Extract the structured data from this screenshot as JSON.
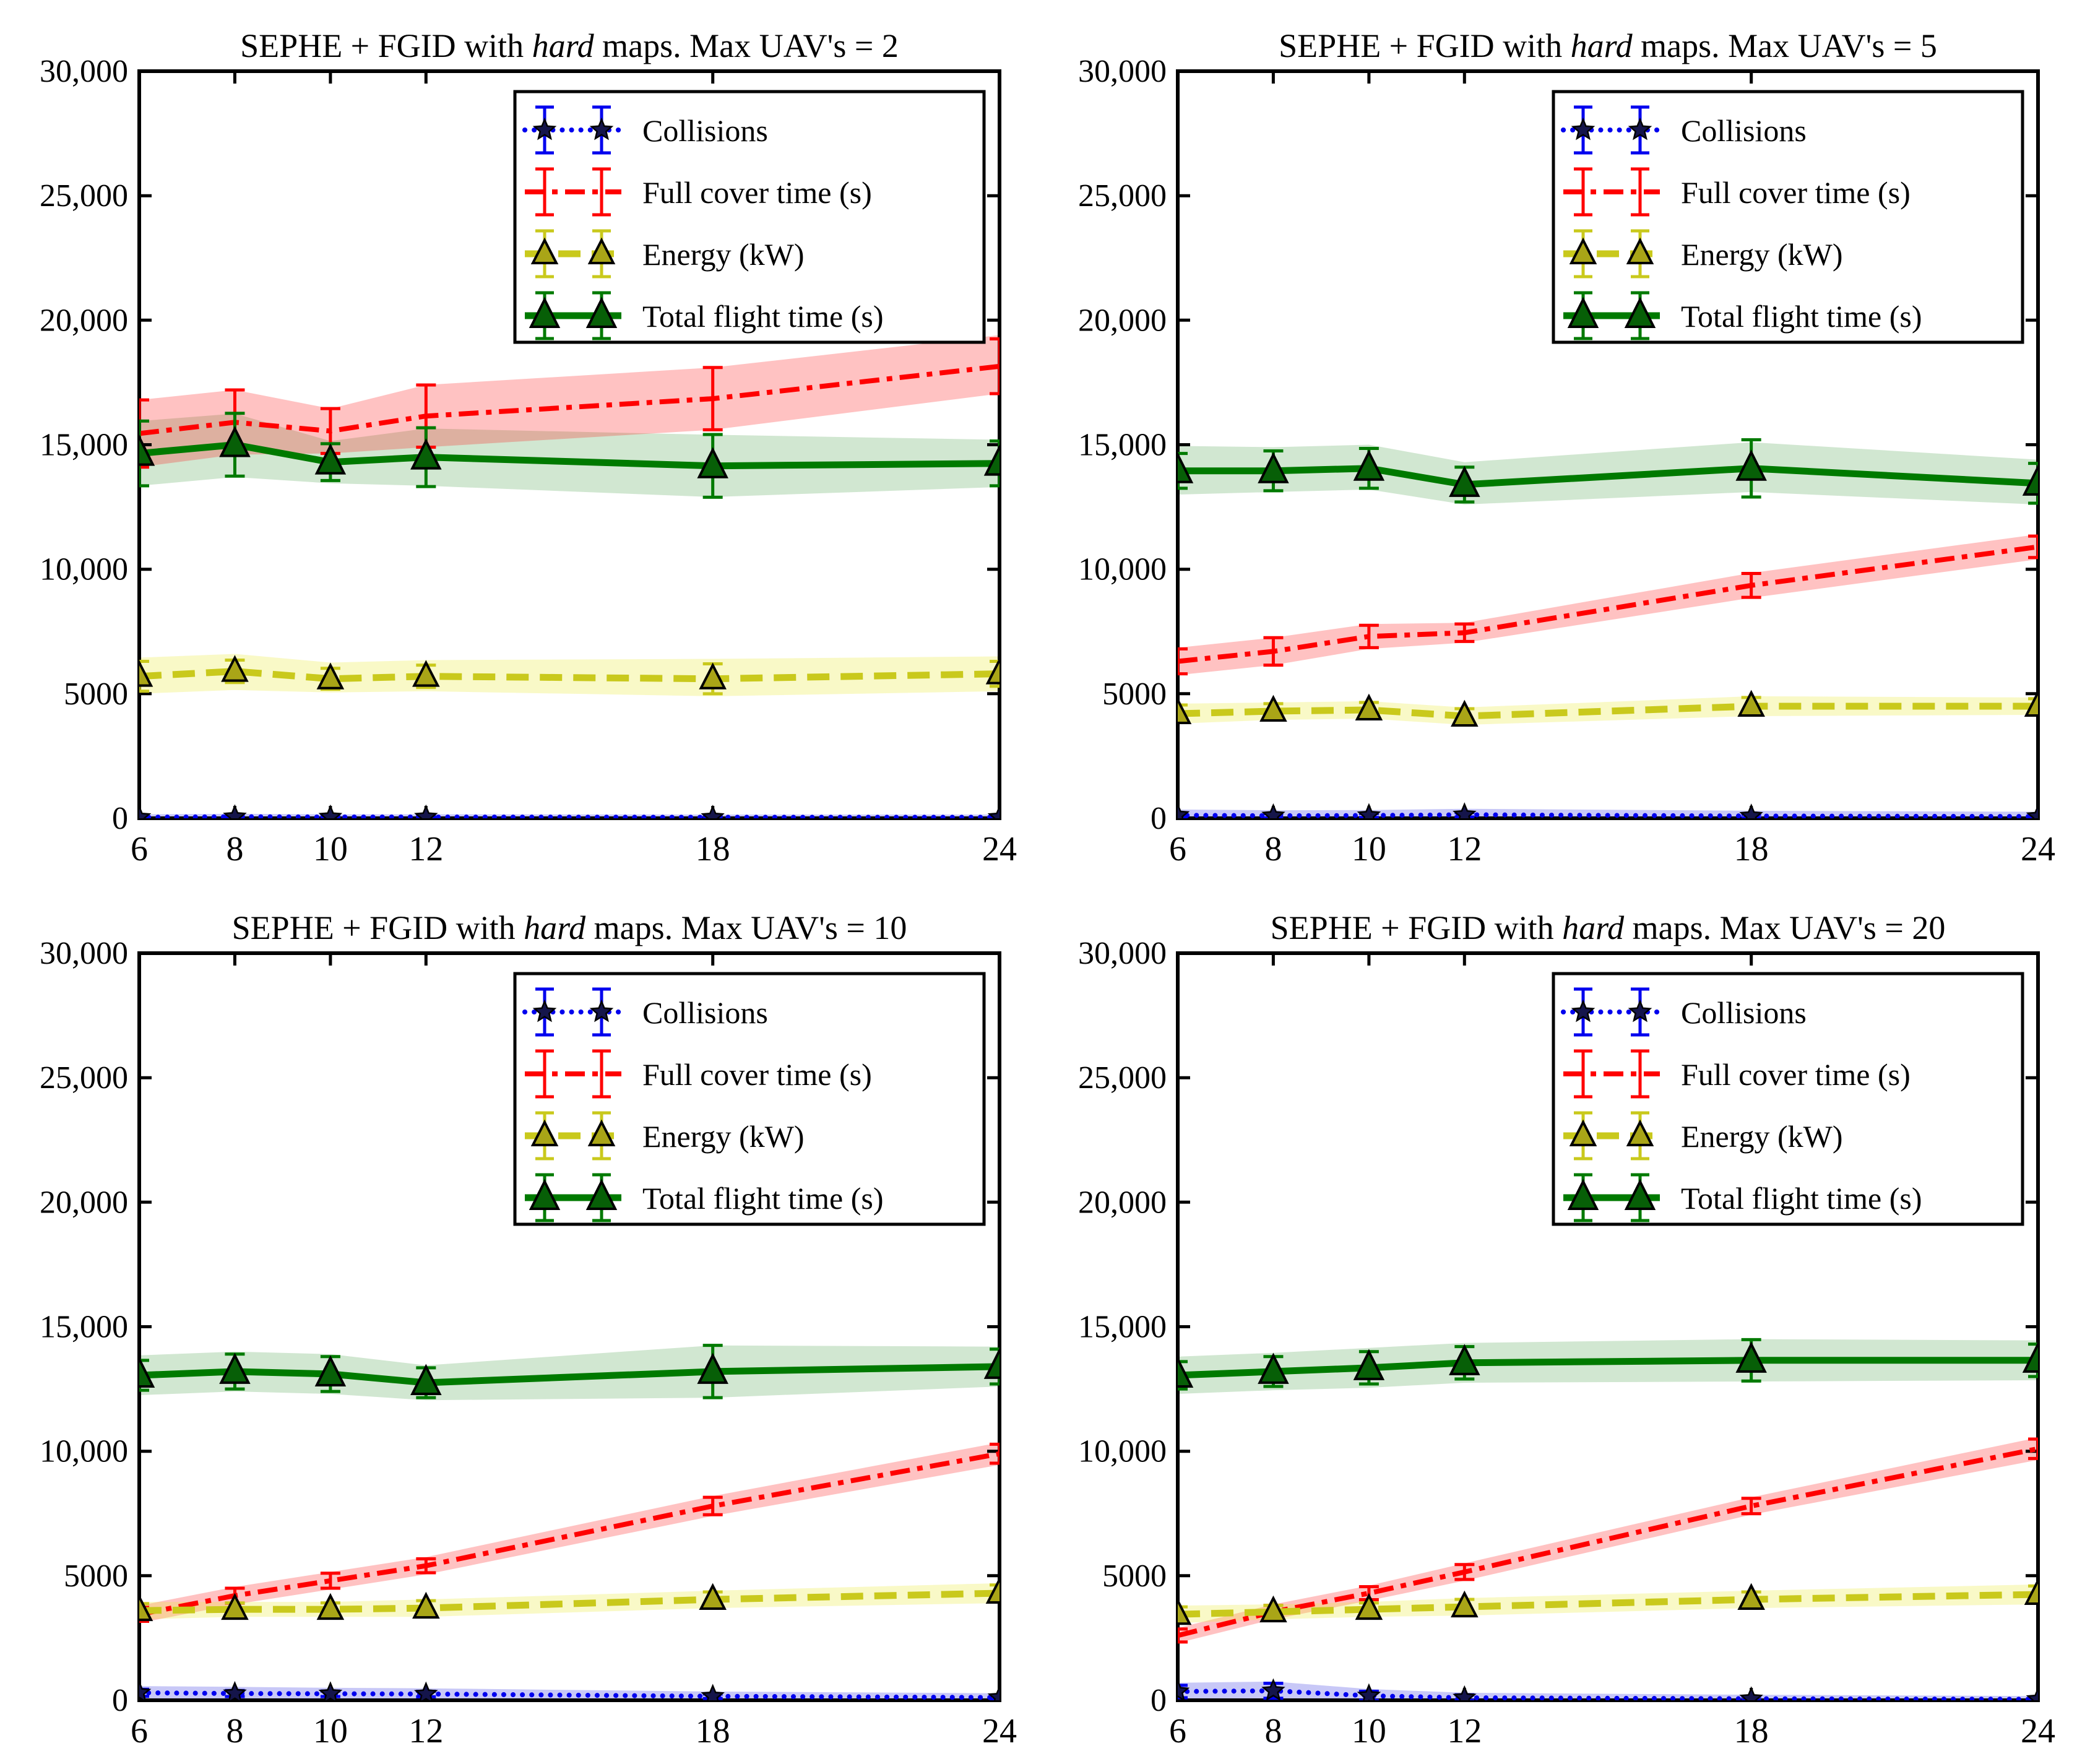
{
  "figure": {
    "background": "#ffffff"
  },
  "axes": {
    "x_range": [
      6,
      24
    ],
    "y_range": [
      0,
      30000
    ],
    "x_ticks": [
      "6",
      "8",
      "10",
      "12",
      "18",
      "24"
    ],
    "x_tick_values": [
      6,
      8,
      10,
      12,
      18,
      24
    ],
    "y_tick_values": [
      0,
      5000,
      10000,
      15000,
      20000,
      25000,
      30000
    ],
    "y_tick_labels": [
      "0",
      "5000",
      "10,000",
      "15,000",
      "20,000",
      "25,000",
      "30,000"
    ]
  },
  "legend": {
    "items": [
      {
        "key": "collisions",
        "label": "Collisions"
      },
      {
        "key": "full_cover",
        "label": "Full cover time (s)"
      },
      {
        "key": "energy",
        "label": "Energy (kW)"
      },
      {
        "key": "total_flight",
        "label": "Total flight time (s)"
      }
    ]
  },
  "styles": {
    "collisions": {
      "color": "#0000ee",
      "band": "rgba(85,85,230,0.32)",
      "line": "dotted",
      "marker": "star",
      "marker_fill": "#15154b"
    },
    "full_cover": {
      "color": "#ff0000",
      "band": "rgba(255,30,30,0.27)",
      "line": "dashdot",
      "marker": "none",
      "marker_fill": "#ff0000"
    },
    "energy": {
      "color": "#c9c91c",
      "band": "rgba(236,236,70,0.30)",
      "line": "dashed",
      "marker": "triangle",
      "marker_fill": "#a9a517"
    },
    "total_flight": {
      "color": "#007a00",
      "band": "rgba(10,128,10,0.19)",
      "line": "solid",
      "marker": "triangle",
      "marker_fill": "#075f07"
    }
  },
  "chart_data": {
    "type": "line",
    "x": [
      6,
      8,
      10,
      12,
      18,
      24
    ],
    "xlabel": "",
    "ylabel": "",
    "ylim": [
      0,
      30000
    ],
    "grid": false,
    "legend_position": "upper right",
    "charts": [
      {
        "name": "max-uavs-2",
        "title": [
          {
            "t": "SEPHE + FGID with ",
            "italic": false
          },
          {
            "t": "hard",
            "italic": true
          },
          {
            "t": " maps. Max UAV's = 2",
            "italic": false
          }
        ],
        "series": {
          "collisions": {
            "values": [
              40,
              60,
              50,
              50,
              40,
              40
            ],
            "err": [
              50,
              60,
              50,
              50,
              40,
              40
            ],
            "band_lo": [
              0,
              0,
              0,
              0,
              0,
              0
            ],
            "band_hi": [
              160,
              180,
              160,
              160,
              150,
              150
            ]
          },
          "full_cover": {
            "values": [
              15450,
              15900,
              15550,
              16150,
              16850,
              18150
            ],
            "err": [
              1350,
              1300,
              900,
              1250,
              1250,
              1100
            ],
            "band_lo": [
              14100,
              14600,
              14650,
              14900,
              15600,
              17050
            ],
            "band_hi": [
              16800,
              17200,
              16450,
              17400,
              18100,
              19400
            ]
          },
          "energy": {
            "values": [
              5700,
              5900,
              5600,
              5700,
              5600,
              5800
            ],
            "err": [
              600,
              450,
              420,
              450,
              600,
              500
            ],
            "band_lo": [
              5000,
              5150,
              5050,
              5100,
              4900,
              5100
            ],
            "band_hi": [
              6450,
              6600,
              6250,
              6350,
              6400,
              6500
            ]
          },
          "total_flight": {
            "values": [
              14650,
              15000,
              14300,
              14500,
              14150,
              14250
            ],
            "err": [
              1300,
              1260,
              740,
              1180,
              1260,
              900
            ],
            "band_lo": [
              13350,
              13700,
              13450,
              13350,
              12900,
              13300
            ],
            "band_hi": [
              15950,
              16250,
              15150,
              15650,
              15400,
              15200
            ]
          }
        }
      },
      {
        "name": "max-uavs-5",
        "title": [
          {
            "t": "SEPHE + FGID with ",
            "italic": false
          },
          {
            "t": "hard",
            "italic": true
          },
          {
            "t": " maps. Max UAV's = 5",
            "italic": false
          }
        ],
        "series": {
          "collisions": {
            "values": [
              120,
              100,
              110,
              140,
              90,
              70
            ],
            "err": [
              90,
              80,
              80,
              90,
              70,
              60
            ],
            "band_lo": [
              0,
              0,
              0,
              0,
              0,
              0
            ],
            "band_hi": [
              350,
              320,
              330,
              380,
              300,
              260
            ]
          },
          "full_cover": {
            "values": [
              6300,
              6700,
              7300,
              7450,
              9350,
              10900
            ],
            "err": [
              500,
              550,
              450,
              350,
              480,
              430
            ],
            "band_lo": [
              5750,
              6150,
              6800,
              7050,
              8850,
              10400
            ],
            "band_hi": [
              6850,
              7250,
              7800,
              7850,
              9850,
              11400
            ]
          },
          "energy": {
            "values": [
              4200,
              4300,
              4350,
              4100,
              4500,
              4500
            ],
            "err": [
              350,
              300,
              300,
              300,
              350,
              300
            ],
            "band_lo": [
              3800,
              3950,
              4000,
              3750,
              4100,
              4150
            ],
            "band_hi": [
              4600,
              4650,
              4700,
              4450,
              4900,
              4850
            ]
          },
          "total_flight": {
            "values": [
              13950,
              13950,
              14050,
              13400,
              14050,
              13450
            ],
            "err": [
              700,
              800,
              800,
              700,
              1150,
              800
            ],
            "band_lo": [
              13000,
              13100,
              13200,
              12600,
              13100,
              12600
            ],
            "band_hi": [
              14950,
              14900,
              15000,
              14300,
              15100,
              14400
            ]
          }
        }
      },
      {
        "name": "max-uavs-10",
        "title": [
          {
            "t": "SEPHE + FGID with ",
            "italic": false
          },
          {
            "t": "hard",
            "italic": true
          },
          {
            "t": " maps. Max UAV's = 10",
            "italic": false
          }
        ],
        "series": {
          "collisions": {
            "values": [
              300,
              270,
              260,
              250,
              160,
              110
            ],
            "err": [
              140,
              120,
              110,
              110,
              90,
              80
            ],
            "band_lo": [
              60,
              50,
              40,
              30,
              0,
              0
            ],
            "band_hi": [
              570,
              540,
              500,
              480,
              350,
              280
            ]
          },
          "full_cover": {
            "values": [
              3450,
              4200,
              4800,
              5400,
              7800,
              9900
            ],
            "err": [
              280,
              300,
              300,
              280,
              350,
              380
            ],
            "band_lo": [
              3100,
              3850,
              4450,
              5050,
              7400,
              9450
            ],
            "band_hi": [
              3800,
              4550,
              5150,
              5750,
              8200,
              10350
            ]
          },
          "energy": {
            "values": [
              3600,
              3650,
              3650,
              3700,
              4050,
              4300
            ],
            "err": [
              280,
              260,
              260,
              300,
              300,
              330
            ],
            "band_lo": [
              3250,
              3350,
              3350,
              3350,
              3700,
              3900
            ],
            "band_hi": [
              3950,
              3950,
              3950,
              4050,
              4400,
              4700
            ]
          },
          "total_flight": {
            "values": [
              13050,
              13200,
              13100,
              12750,
              13200,
              13400
            ],
            "err": [
              600,
              700,
              700,
              600,
              1050,
              700
            ],
            "band_lo": [
              12250,
              12400,
              12300,
              12050,
              12150,
              12600
            ],
            "band_hi": [
              13850,
              14000,
              13900,
              13450,
              14250,
              14200
            ]
          }
        }
      },
      {
        "name": "max-uavs-20",
        "title": [
          {
            "t": "SEPHE + FGID with ",
            "italic": false
          },
          {
            "t": "hard",
            "italic": true
          },
          {
            "t": " maps. Max UAV's = 20",
            "italic": false
          }
        ],
        "series": {
          "collisions": {
            "values": [
              350,
              380,
              180,
              100,
              60,
              40
            ],
            "err": [
              250,
              300,
              180,
              120,
              90,
              80
            ],
            "band_lo": [
              50,
              30,
              0,
              0,
              0,
              0
            ],
            "band_hi": [
              700,
              750,
              450,
              300,
              220,
              170
            ]
          },
          "full_cover": {
            "values": [
              2600,
              3550,
              4300,
              5150,
              7800,
              10100
            ],
            "err": [
              260,
              260,
              260,
              300,
              310,
              390
            ],
            "band_lo": [
              2300,
              3250,
              4000,
              4800,
              7450,
              9650
            ],
            "band_hi": [
              2900,
              3850,
              4600,
              5500,
              8150,
              10550
            ]
          },
          "energy": {
            "values": [
              3450,
              3550,
              3650,
              3750,
              4050,
              4250
            ],
            "err": [
              300,
              260,
              260,
              300,
              300,
              340
            ],
            "band_lo": [
              3100,
              3250,
              3350,
              3400,
              3700,
              3850
            ],
            "band_hi": [
              3800,
              3850,
              3950,
              4100,
              4400,
              4650
            ]
          },
          "total_flight": {
            "values": [
              13050,
              13200,
              13350,
              13550,
              13650,
              13650
            ],
            "err": [
              550,
              600,
              650,
              650,
              830,
              650
            ],
            "band_lo": [
              12300,
              12450,
              12550,
              12750,
              12800,
              12850
            ],
            "band_hi": [
              13800,
              13950,
              14150,
              14350,
              14500,
              14450
            ]
          }
        }
      }
    ]
  }
}
